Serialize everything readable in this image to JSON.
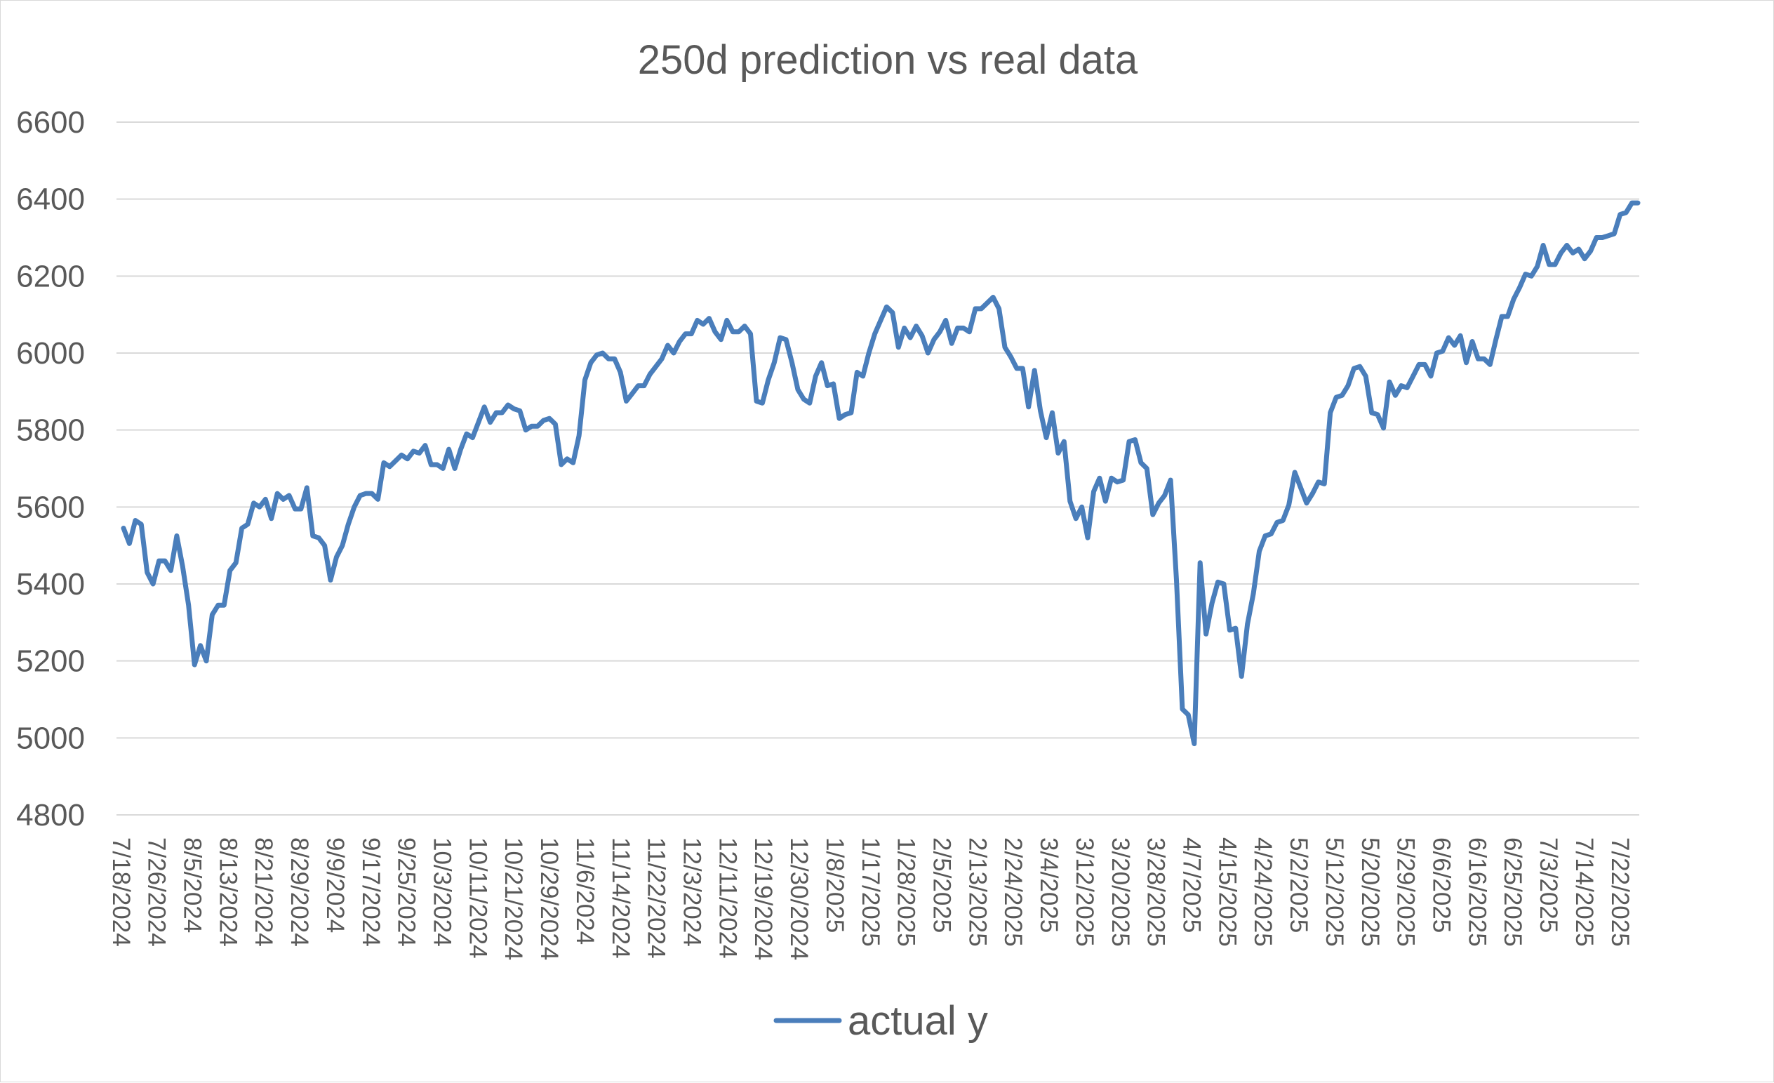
{
  "chart_data": {
    "type": "line",
    "title": "250d prediction vs real data",
    "xlabel": "",
    "ylabel": "",
    "ylim": [
      4800,
      6600
    ],
    "yticks": [
      4800,
      5000,
      5200,
      5400,
      5600,
      5800,
      6000,
      6200,
      6400,
      6600
    ],
    "grid": true,
    "legend_position": "bottom",
    "x_tick_labels": [
      "7/18/2024",
      "7/26/2024",
      "8/5/2024",
      "8/13/2024",
      "8/21/2024",
      "8/29/2024",
      "9/9/2024",
      "9/17/2024",
      "9/25/2024",
      "10/3/2024",
      "10/11/2024",
      "10/21/2024",
      "10/29/2024",
      "11/6/2024",
      "11/14/2024",
      "11/22/2024",
      "12/3/2024",
      "12/11/2024",
      "12/19/2024",
      "12/30/2024",
      "1/8/2025",
      "1/17/2025",
      "1/28/2025",
      "2/5/2025",
      "2/13/2025",
      "2/24/2025",
      "3/4/2025",
      "3/12/2025",
      "3/20/2025",
      "3/28/2025",
      "4/7/2025",
      "4/15/2025",
      "4/24/2025",
      "5/2/2025",
      "5/12/2025",
      "5/20/2025",
      "5/29/2025",
      "6/6/2025",
      "6/16/2025",
      "6/25/2025",
      "7/3/2025",
      "7/14/2025",
      "7/22/2025"
    ],
    "colors": {
      "series": "#4a7ebb",
      "grid": "#d9d9d9",
      "text": "#595959"
    },
    "series": [
      {
        "name": "actual y",
        "values": [
          5545,
          5505,
          5565,
          5555,
          5430,
          5400,
          5460,
          5460,
          5435,
          5525,
          5445,
          5345,
          5190,
          5240,
          5200,
          5320,
          5345,
          5345,
          5435,
          5455,
          5545,
          5555,
          5610,
          5600,
          5620,
          5570,
          5635,
          5620,
          5630,
          5595,
          5595,
          5650,
          5525,
          5520,
          5500,
          5410,
          5470,
          5500,
          5555,
          5600,
          5630,
          5635,
          5635,
          5620,
          5715,
          5705,
          5720,
          5735,
          5725,
          5745,
          5740,
          5760,
          5710,
          5710,
          5700,
          5750,
          5700,
          5750,
          5790,
          5780,
          5820,
          5860,
          5820,
          5845,
          5845,
          5865,
          5855,
          5850,
          5800,
          5810,
          5810,
          5825,
          5830,
          5815,
          5710,
          5725,
          5715,
          5785,
          5930,
          5975,
          5995,
          6000,
          5985,
          5985,
          5950,
          5875,
          5895,
          5915,
          5915,
          5945,
          5965,
          5985,
          6020,
          6000,
          6030,
          6050,
          6050,
          6085,
          6075,
          6090,
          6055,
          6035,
          6085,
          6055,
          6055,
          6070,
          6050,
          5875,
          5870,
          5930,
          5975,
          6040,
          6035,
          5975,
          5905,
          5880,
          5870,
          5940,
          5975,
          5915,
          5920,
          5830,
          5840,
          5845,
          5950,
          5940,
          6000,
          6050,
          6085,
          6120,
          6105,
          6015,
          6065,
          6040,
          6070,
          6045,
          6000,
          6035,
          6055,
          6085,
          6025,
          6065,
          6065,
          6055,
          6115,
          6115,
          6130,
          6145,
          6115,
          6015,
          5990,
          5960,
          5960,
          5860,
          5955,
          5850,
          5780,
          5845,
          5740,
          5770,
          5615,
          5570,
          5600,
          5520,
          5640,
          5675,
          5615,
          5675,
          5665,
          5670,
          5770,
          5775,
          5715,
          5700,
          5580,
          5610,
          5630,
          5670,
          5410,
          5075,
          5060,
          4985,
          5455,
          5270,
          5350,
          5405,
          5400,
          5280,
          5285,
          5160,
          5295,
          5375,
          5485,
          5525,
          5530,
          5560,
          5565,
          5605,
          5690,
          5650,
          5610,
          5635,
          5665,
          5660,
          5845,
          5885,
          5890,
          5915,
          5960,
          5965,
          5940,
          5845,
          5840,
          5805,
          5925,
          5890,
          5915,
          5910,
          5940,
          5970,
          5970,
          5940,
          6000,
          6005,
          6040,
          6020,
          6045,
          5975,
          6030,
          5985,
          5985,
          5970,
          6035,
          6095,
          6095,
          6140,
          6170,
          6205,
          6200,
          6225,
          6280,
          6230,
          6230,
          6260,
          6280,
          6260,
          6270,
          6245,
          6265,
          6300,
          6300,
          6305,
          6310,
          6360,
          6365,
          6390,
          6390
        ]
      }
    ]
  }
}
